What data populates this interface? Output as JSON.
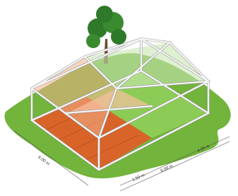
{
  "dimensions": [
    {
      "label": "6.00 m"
    },
    {
      "label": "1.50 m"
    },
    {
      "label": "6.00 m"
    },
    {
      "label": "4.00 m"
    }
  ]
}
